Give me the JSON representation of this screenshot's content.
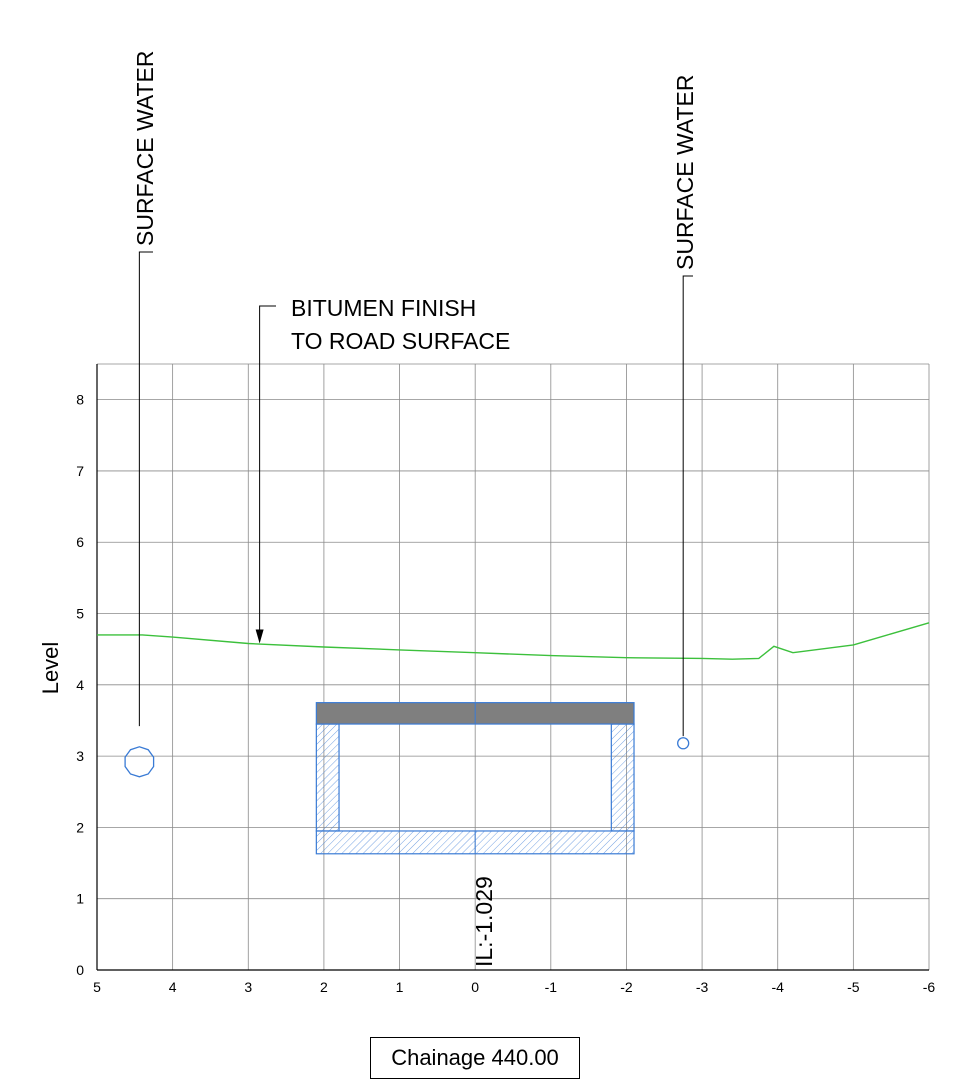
{
  "section": {
    "chainage_label": "Chainage 440.00",
    "y_axis_label": "Level",
    "x_ticks": [
      "5",
      "4",
      "3",
      "2",
      "1",
      "0",
      "-1",
      "-2",
      "-3",
      "-4",
      "-5",
      "-6"
    ],
    "y_ticks": [
      "0",
      "1",
      "2",
      "3",
      "4",
      "5",
      "6",
      "7",
      "8"
    ]
  },
  "annotations": {
    "surface_water_left": "SURFACE WATER",
    "surface_water_right": "SURFACE WATER",
    "bitumen_line1": "BITUMEN FINISH",
    "bitumen_line2": "TO ROAD SURFACE",
    "invert_level": "IL:-1.029"
  },
  "colors": {
    "grid": "#8a8a8a",
    "ground_line": "#3cc03c",
    "structure": "#3a7bd5",
    "slab": "#7f7f7f"
  },
  "chart_data": {
    "type": "line",
    "xlabel": "",
    "ylabel": "Level",
    "xlim": [
      5,
      -6
    ],
    "ylim": [
      0,
      8.5
    ],
    "grid": true,
    "series": [
      {
        "x": [
          5.0,
          4.4,
          4.0,
          3.0,
          2.0,
          1.0,
          0.0,
          -1.0,
          -2.0,
          -3.0,
          -3.4,
          -3.75,
          -3.95,
          -4.2,
          -5.0,
          -6.0
        ],
        "y": [
          4.7,
          4.7,
          4.67,
          4.58,
          4.53,
          4.49,
          4.45,
          4.41,
          4.38,
          4.37,
          4.36,
          4.37,
          4.54,
          4.45,
          4.56,
          4.87
        ]
      }
    ],
    "culvert": {
      "x_left": 2.1,
      "x_right": -2.1,
      "top": 3.75,
      "slab_bottom": 3.45,
      "base_top": 1.95,
      "base_bottom": 1.63,
      "wall_thickness": 0.3
    },
    "pipe_left": {
      "x": 4.44,
      "y": 2.92,
      "radius": 0.2
    },
    "pipe_right": {
      "x": -2.75,
      "y": 3.18,
      "radius": 0.07
    },
    "water_leader_left": {
      "x": 4.44,
      "y_bottom": 3.42
    },
    "water_leader_right": {
      "x": -2.75,
      "y_bottom": 3.28
    },
    "bitumen_arrow": {
      "x": 2.85,
      "y_tip": 4.58
    }
  }
}
